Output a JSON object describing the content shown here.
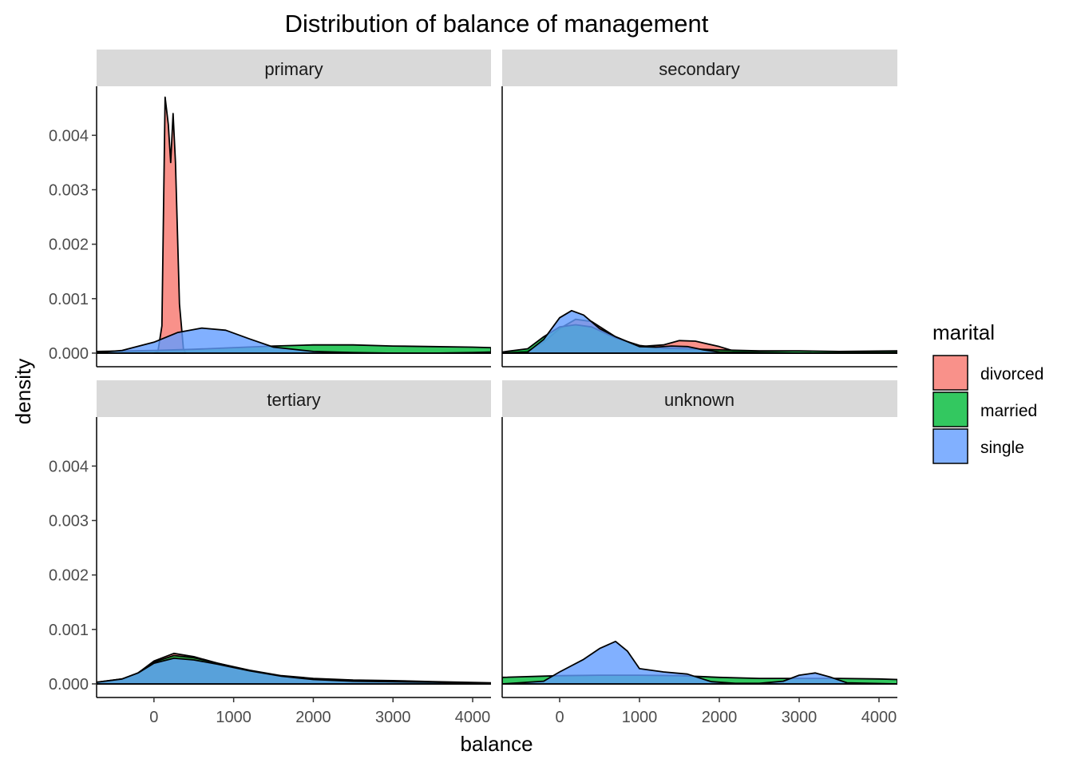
{
  "chart_data": {
    "type": "area",
    "title": "Distribution of balance of management",
    "xlabel": "balance",
    "ylabel": "density",
    "xlim": [
      -720,
      4230
    ],
    "ylim": [
      -0.00025,
      0.0049
    ],
    "x_ticks": [
      0,
      1000,
      2000,
      3000,
      4000
    ],
    "x_tick_labels": [
      "0",
      "1000",
      "2000",
      "3000",
      "4000"
    ],
    "y_ticks": [
      0,
      0.001,
      0.002,
      0.003,
      0.004
    ],
    "y_tick_labels": [
      "0.000",
      "0.001",
      "0.002",
      "0.003",
      "0.004"
    ],
    "grid": false,
    "legend": {
      "title": "marital",
      "position": "right",
      "entries": [
        {
          "label": "divorced",
          "color": "#F8766D"
        },
        {
          "label": "married",
          "color": "#00BA38"
        },
        {
          "label": "single",
          "color": "#619CFF"
        }
      ]
    },
    "facets": [
      {
        "label": "primary",
        "series": [
          {
            "name": "divorced",
            "x": [
              0,
              50,
              100,
              140,
              180,
              210,
              240,
              270,
              320,
              370,
              400
            ],
            "y": [
              0,
              3e-05,
              0.0005,
              0.0047,
              0.0042,
              0.0035,
              0.0044,
              0.0035,
              0.0009,
              7e-05,
              0
            ]
          },
          {
            "name": "married",
            "x": [
              -720,
              -300,
              0,
              500,
              1000,
              1500,
              2000,
              2500,
              3000,
              3500,
              4000,
              4230
            ],
            "y": [
              3e-05,
              4e-05,
              5e-05,
              7e-05,
              0.0001,
              0.00013,
              0.00015,
              0.00015,
              0.00013,
              0.00012,
              0.00011,
              0.0001
            ]
          },
          {
            "name": "single",
            "x": [
              -720,
              -400,
              0,
              300,
              600,
              900,
              1200,
              1500,
              2000,
              2500,
              3000,
              3500,
              4000,
              4230
            ],
            "y": [
              1e-05,
              5e-05,
              0.0002,
              0.00038,
              0.00046,
              0.00042,
              0.00026,
              0.00011,
              3e-05,
              1e-05,
              0,
              0,
              1e-05,
              2e-05
            ]
          }
        ]
      },
      {
        "label": "secondary",
        "series": [
          {
            "name": "divorced",
            "x": [
              -720,
              -400,
              -200,
              0,
              200,
              400,
              700,
              1000,
              1300,
              1500,
              1700,
              2000,
              2200,
              2500,
              3000,
              4230
            ],
            "y": [
              0,
              4e-05,
              0.0002,
              0.00045,
              0.00062,
              0.00058,
              0.0003,
              0.00012,
              0.00015,
              0.00023,
              0.00022,
              0.00012,
              3e-05,
              1e-05,
              0,
              0
            ]
          },
          {
            "name": "married",
            "x": [
              -720,
              -400,
              -200,
              0,
              200,
              400,
              700,
              1000,
              1300,
              1600,
              2000,
              2500,
              3000,
              3500,
              4230
            ],
            "y": [
              2e-05,
              8e-05,
              0.0003,
              0.00048,
              0.00052,
              0.00048,
              0.00028,
              0.00014,
              9e-05,
              8e-05,
              6e-05,
              4e-05,
              4e-05,
              3e-05,
              4e-05
            ]
          },
          {
            "name": "single",
            "x": [
              -720,
              -400,
              -200,
              0,
              150,
              300,
              500,
              700,
              1000,
              1200,
              1400,
              1600,
              1800,
              2000,
              2500,
              3000,
              4230
            ],
            "y": [
              0,
              2e-05,
              0.00025,
              0.00065,
              0.00078,
              0.0007,
              0.00045,
              0.0003,
              0.00012,
              0.00011,
              0.00013,
              0.00012,
              6e-05,
              2e-05,
              1e-05,
              0,
              1e-05
            ]
          }
        ]
      },
      {
        "label": "tertiary",
        "series": [
          {
            "name": "divorced",
            "x": [
              -720,
              -400,
              -200,
              0,
              250,
              500,
              800,
              1200,
              1600,
              2000,
              2500,
              3000,
              3500,
              4230
            ],
            "y": [
              2e-05,
              8e-05,
              0.0002,
              0.00042,
              0.00056,
              0.0005,
              0.00038,
              0.00024,
              0.00014,
              8e-05,
              5e-05,
              4e-05,
              2e-05,
              1e-05
            ]
          },
          {
            "name": "married",
            "x": [
              -720,
              -400,
              -200,
              0,
              250,
              500,
              800,
              1200,
              1600,
              2000,
              2500,
              3000,
              3500,
              4230
            ],
            "y": [
              3e-05,
              9e-05,
              0.0002,
              0.0004,
              0.00052,
              0.00048,
              0.00038,
              0.00025,
              0.00015,
              0.0001,
              7e-05,
              6e-05,
              4e-05,
              2e-05
            ]
          },
          {
            "name": "single",
            "x": [
              -720,
              -400,
              -200,
              0,
              250,
              500,
              800,
              1200,
              1600,
              2000,
              2500,
              3000,
              3500,
              4230
            ],
            "y": [
              3e-05,
              9e-05,
              0.0002,
              0.00038,
              0.00047,
              0.00044,
              0.00036,
              0.00024,
              0.00014,
              8e-05,
              5e-05,
              4e-05,
              3e-05,
              1e-05
            ]
          }
        ]
      },
      {
        "label": "unknown",
        "series": [
          {
            "name": "married",
            "x": [
              -720,
              0,
              500,
              1000,
              1500,
              2000,
              2500,
              3000,
              3500,
              4000,
              4230
            ],
            "y": [
              0.00012,
              0.00015,
              0.00016,
              0.00016,
              0.00015,
              0.00012,
              0.0001,
              0.0001,
              0.0001,
              9e-05,
              8e-05
            ]
          },
          {
            "name": "single",
            "x": [
              -720,
              -200,
              0,
              300,
              500,
              700,
              850,
              1000,
              1300,
              1600,
              1900,
              2200,
              2500,
              2800,
              3000,
              3200,
              3400,
              3600,
              4230
            ],
            "y": [
              0,
              5e-05,
              0.00022,
              0.00045,
              0.00065,
              0.00078,
              0.0006,
              0.00028,
              0.00022,
              0.00018,
              4e-05,
              1e-05,
              1e-05,
              5e-05,
              0.00016,
              0.0002,
              0.00012,
              2e-05,
              0
            ]
          }
        ]
      }
    ]
  }
}
